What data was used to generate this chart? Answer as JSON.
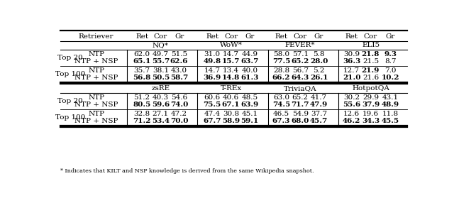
{
  "header_row": [
    "",
    "Retriever",
    "Ret",
    "Cor",
    "Gr",
    "Ret",
    "Cor",
    "Gr",
    "Ret",
    "Cor",
    "Gr",
    "Ret",
    "Cor",
    "Gr"
  ],
  "dataset_row1": [
    "",
    "",
    "NQ*",
    "",
    "",
    "WoW*",
    "",
    "",
    "FEVER*",
    "",
    "",
    "ELI5",
    "",
    ""
  ],
  "dataset_row2": [
    "",
    "",
    "zsRE",
    "",
    "",
    "T-REx",
    "",
    "",
    "TriviaQA",
    "",
    "",
    "HotpotQA",
    "",
    ""
  ],
  "section1": {
    "top20": {
      "NTP": [
        "62.0",
        "49.7",
        "51.5",
        "31.0",
        "14.7",
        "44.9",
        "58.0",
        "57.1",
        "5.8",
        "30.9",
        "21.8",
        "9.3"
      ],
      "NTP+NSP": [
        "65.1",
        "55.7",
        "62.6",
        "49.8",
        "15.7",
        "63.7",
        "77.5",
        "65.2",
        "28.0",
        "36.3",
        "21.5",
        "8.7"
      ]
    },
    "top100": {
      "NTP": [
        "35.7",
        "38.1",
        "43.0",
        "14.7",
        "13.4",
        "40.0",
        "28.8",
        "56.7",
        "5.2",
        "12.7",
        "21.9",
        "7.0"
      ],
      "NTP+NSP": [
        "56.8",
        "50.5",
        "58.7",
        "36.9",
        "14.8",
        "61.3",
        "66.2",
        "64.3",
        "26.1",
        "21.0",
        "21.6",
        "10.2"
      ]
    }
  },
  "section2": {
    "top20": {
      "NTP": [
        "51.2",
        "40.3",
        "54.6",
        "60.6",
        "40.6",
        "48.5",
        "63.0",
        "65.2",
        "41.7",
        "30.2",
        "29.9",
        "43.1"
      ],
      "NTP+NSP": [
        "80.5",
        "59.6",
        "74.0",
        "75.5",
        "67.1",
        "63.9",
        "74.5",
        "71.7",
        "47.9",
        "55.6",
        "37.9",
        "48.9"
      ]
    },
    "top100": {
      "NTP": [
        "32.8",
        "27.1",
        "47.2",
        "47.4",
        "30.8",
        "45.1",
        "46.5",
        "54.9",
        "37.7",
        "12.6",
        "19.6",
        "11.8"
      ],
      "NTP+NSP": [
        "71.2",
        "53.4",
        "70.0",
        "67.7",
        "58.9",
        "59.1",
        "67.3",
        "68.0",
        "45.7",
        "46.2",
        "34.3",
        "45.5"
      ]
    }
  },
  "bold_s1_top20_NTP": [
    false,
    false,
    false,
    false,
    false,
    false,
    false,
    false,
    false,
    false,
    true,
    true
  ],
  "bold_s1_top20_NSP": [
    true,
    true,
    true,
    true,
    true,
    true,
    true,
    true,
    true,
    true,
    false,
    false
  ],
  "bold_s1_top100_NTP": [
    false,
    false,
    false,
    false,
    false,
    false,
    false,
    false,
    false,
    false,
    true,
    false
  ],
  "bold_s1_top100_NSP": [
    true,
    true,
    true,
    true,
    true,
    true,
    true,
    true,
    true,
    true,
    false,
    true
  ],
  "bold_s2_top20_NTP": [
    false,
    false,
    false,
    false,
    false,
    false,
    false,
    false,
    false,
    false,
    false,
    false
  ],
  "bold_s2_top20_NSP": [
    true,
    true,
    true,
    true,
    true,
    true,
    true,
    true,
    true,
    true,
    true,
    true
  ],
  "bold_s2_top100_NTP": [
    false,
    false,
    false,
    false,
    false,
    false,
    false,
    false,
    false,
    false,
    false,
    false
  ],
  "bold_s2_top100_NSP": [
    true,
    true,
    true,
    true,
    true,
    true,
    true,
    true,
    true,
    true,
    true,
    true
  ],
  "footnote": "* Indicates that KILT and NSP knowledge is derived from the same Wikipedia snapshot."
}
